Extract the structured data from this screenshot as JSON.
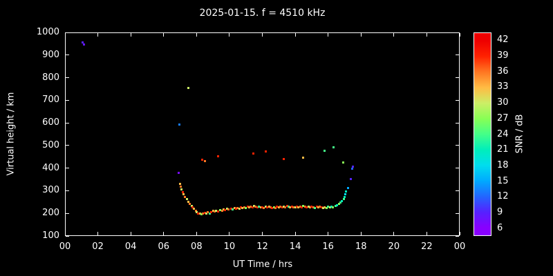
{
  "chart_data": {
    "type": "scatter",
    "title": "2025-01-15. f = 4510 kHz",
    "xlabel": "UT Time / hrs",
    "ylabel": "Virtual height / km",
    "xlim": [
      0,
      24
    ],
    "ylim": [
      100,
      1000
    ],
    "background": "#000000",
    "frame_color": "#ffffff",
    "x_ticks": {
      "values": [
        0,
        2,
        4,
        6,
        8,
        10,
        12,
        14,
        16,
        18,
        20,
        22,
        24
      ],
      "labels": [
        "00",
        "02",
        "04",
        "06",
        "08",
        "10",
        "12",
        "14",
        "16",
        "18",
        "20",
        "22",
        "00"
      ]
    },
    "y_ticks": {
      "values": [
        100,
        200,
        300,
        400,
        500,
        600,
        700,
        800,
        900,
        1000
      ],
      "labels": [
        "100",
        "200",
        "300",
        "400",
        "500",
        "600",
        "700",
        "800",
        "900",
        "1000"
      ]
    },
    "colorbar": {
      "label": "SNR / dB",
      "min": 4.5,
      "max": 43.5,
      "ticks": [
        6,
        9,
        12,
        15,
        18,
        21,
        24,
        27,
        30,
        33,
        36,
        39,
        42
      ],
      "stops": [
        {
          "v": 6,
          "c": "#8800ff"
        },
        {
          "v": 9,
          "c": "#5522ff"
        },
        {
          "v": 12,
          "c": "#2266ff"
        },
        {
          "v": 15,
          "c": "#00aaff"
        },
        {
          "v": 18,
          "c": "#00ddee"
        },
        {
          "v": 21,
          "c": "#00eebb"
        },
        {
          "v": 24,
          "c": "#44ff88"
        },
        {
          "v": 27,
          "c": "#88ff55"
        },
        {
          "v": 30,
          "c": "#ccee66"
        },
        {
          "v": 33,
          "c": "#ffbb44"
        },
        {
          "v": 36,
          "c": "#ff7722"
        },
        {
          "v": 39,
          "c": "#ff2200"
        },
        {
          "v": 42,
          "c": "#ee0000"
        }
      ]
    },
    "points": [
      [
        1.08,
        955,
        9
      ],
      [
        1.16,
        948,
        8
      ],
      [
        6.9,
        378,
        7
      ],
      [
        6.95,
        592,
        13
      ],
      [
        7.5,
        755,
        30
      ],
      [
        7.0,
        330,
        33
      ],
      [
        7.05,
        318,
        36
      ],
      [
        7.1,
        305,
        30
      ],
      [
        7.15,
        295,
        39
      ],
      [
        7.2,
        285,
        33
      ],
      [
        7.3,
        272,
        36
      ],
      [
        7.4,
        262,
        30
      ],
      [
        7.5,
        252,
        33
      ],
      [
        7.6,
        243,
        36
      ],
      [
        7.7,
        234,
        30
      ],
      [
        7.75,
        228,
        39
      ],
      [
        7.85,
        220,
        33
      ],
      [
        7.95,
        212,
        36
      ],
      [
        8.0,
        205,
        30
      ],
      [
        8.1,
        200,
        39
      ],
      [
        8.2,
        198,
        33
      ],
      [
        8.3,
        197,
        27
      ],
      [
        8.4,
        200,
        36
      ],
      [
        8.5,
        202,
        39
      ],
      [
        8.6,
        199,
        30
      ],
      [
        8.7,
        204,
        36
      ],
      [
        8.8,
        200,
        24
      ],
      [
        8.9,
        206,
        39
      ],
      [
        9.0,
        210,
        33
      ],
      [
        9.1,
        207,
        36
      ],
      [
        9.2,
        212,
        30
      ],
      [
        9.3,
        209,
        39
      ],
      [
        9.45,
        214,
        27
      ],
      [
        9.55,
        211,
        36
      ],
      [
        9.65,
        217,
        33
      ],
      [
        9.75,
        214,
        39
      ],
      [
        9.85,
        219,
        30
      ],
      [
        9.95,
        216,
        36
      ],
      [
        10.1,
        221,
        39
      ],
      [
        10.2,
        218,
        24
      ],
      [
        10.3,
        223,
        33
      ],
      [
        10.4,
        220,
        39
      ],
      [
        10.5,
        224,
        36
      ],
      [
        10.6,
        221,
        30
      ],
      [
        10.7,
        226,
        39
      ],
      [
        10.8,
        223,
        33
      ],
      [
        10.9,
        227,
        36
      ],
      [
        11.0,
        224,
        27
      ],
      [
        11.1,
        229,
        39
      ],
      [
        11.2,
        226,
        33
      ],
      [
        11.3,
        231,
        36
      ],
      [
        11.4,
        228,
        39
      ],
      [
        11.5,
        233,
        30
      ],
      [
        11.6,
        229,
        36
      ],
      [
        11.7,
        227,
        39
      ],
      [
        11.8,
        231,
        24
      ],
      [
        11.9,
        228,
        33
      ],
      [
        12.0,
        226,
        39
      ],
      [
        12.1,
        224,
        36
      ],
      [
        12.2,
        229,
        30
      ],
      [
        12.3,
        226,
        39
      ],
      [
        12.4,
        230,
        33
      ],
      [
        12.5,
        227,
        36
      ],
      [
        12.6,
        224,
        39
      ],
      [
        12.7,
        228,
        27
      ],
      [
        12.8,
        225,
        36
      ],
      [
        12.9,
        229,
        39
      ],
      [
        13.0,
        226,
        33
      ],
      [
        13.1,
        230,
        36
      ],
      [
        13.2,
        227,
        39
      ],
      [
        13.3,
        231,
        30
      ],
      [
        13.4,
        228,
        36
      ],
      [
        13.5,
        232,
        39
      ],
      [
        13.6,
        229,
        24
      ],
      [
        13.7,
        227,
        33
      ],
      [
        13.8,
        231,
        39
      ],
      [
        13.9,
        228,
        36
      ],
      [
        14.0,
        226,
        30
      ],
      [
        14.1,
        230,
        39
      ],
      [
        14.2,
        227,
        33
      ],
      [
        14.3,
        231,
        36
      ],
      [
        14.4,
        228,
        39
      ],
      [
        14.5,
        232,
        27
      ],
      [
        14.6,
        229,
        36
      ],
      [
        14.7,
        226,
        39
      ],
      [
        14.8,
        230,
        30
      ],
      [
        14.9,
        227,
        33
      ],
      [
        15.0,
        231,
        39
      ],
      [
        15.1,
        228,
        36
      ],
      [
        15.2,
        225,
        24
      ],
      [
        15.3,
        229,
        39
      ],
      [
        15.4,
        226,
        33
      ],
      [
        15.5,
        230,
        36
      ],
      [
        15.6,
        227,
        39
      ],
      [
        15.7,
        224,
        30
      ],
      [
        15.8,
        228,
        33
      ],
      [
        15.9,
        225,
        27
      ],
      [
        16.0,
        229,
        24
      ],
      [
        16.1,
        226,
        30
      ],
      [
        16.2,
        231,
        21
      ],
      [
        16.3,
        228,
        27
      ],
      [
        16.45,
        233,
        24
      ],
      [
        16.55,
        237,
        21
      ],
      [
        16.65,
        242,
        27
      ],
      [
        16.75,
        247,
        24
      ],
      [
        16.85,
        253,
        21
      ],
      [
        16.95,
        262,
        24
      ],
      [
        17.0,
        272,
        21
      ],
      [
        17.05,
        285,
        18
      ],
      [
        17.1,
        298,
        21
      ],
      [
        17.2,
        312,
        15
      ],
      [
        17.4,
        352,
        9
      ],
      [
        17.45,
        398,
        12
      ],
      [
        17.5,
        408,
        9
      ],
      [
        8.35,
        436,
        39
      ],
      [
        8.5,
        430,
        36
      ],
      [
        9.3,
        452,
        39
      ],
      [
        11.45,
        465,
        39
      ],
      [
        12.2,
        473,
        39
      ],
      [
        13.3,
        441,
        39
      ],
      [
        14.5,
        446,
        33
      ],
      [
        15.8,
        476,
        24
      ],
      [
        16.35,
        491,
        24
      ],
      [
        16.9,
        426,
        27
      ]
    ]
  }
}
